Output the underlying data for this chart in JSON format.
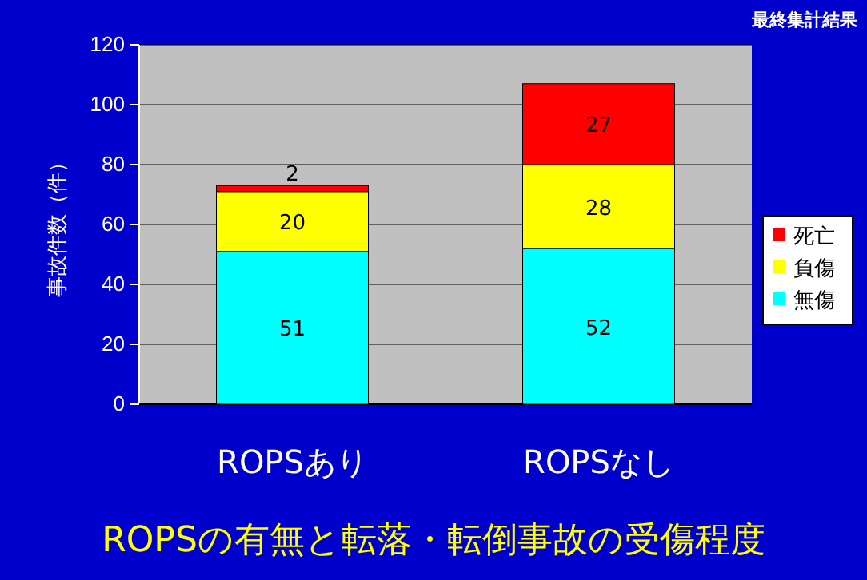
{
  "chart_data": {
    "type": "bar",
    "title": "ROPSの有無と転落・転倒事故の受傷程度",
    "ylabel": "事故件数（件）",
    "annotations": [
      "最終集計結果"
    ],
    "categories": [
      "ROPSあり",
      "ROPSなし"
    ],
    "stacked": true,
    "ylim": [
      0,
      120
    ],
    "yticks": [
      0,
      20,
      40,
      60,
      80,
      100,
      120
    ],
    "grid": "y",
    "legend": "right",
    "data_labels": true,
    "series": [
      {
        "name": "無傷",
        "color": "#00ffff",
        "values": [
          51,
          52
        ]
      },
      {
        "name": "負傷",
        "color": "#ffff00",
        "values": [
          20,
          28
        ]
      },
      {
        "name": "死亡",
        "color": "#ff0000",
        "values": [
          2,
          27
        ]
      }
    ]
  }
}
